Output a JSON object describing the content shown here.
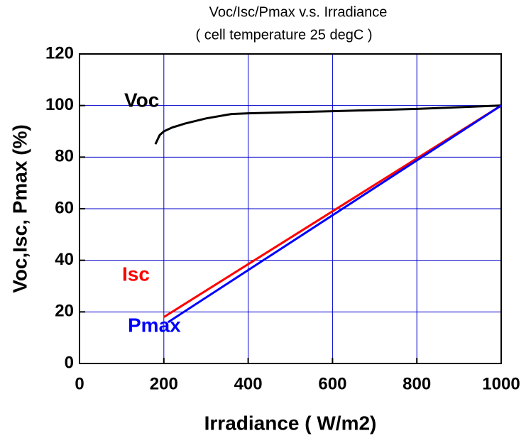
{
  "chart_data": {
    "type": "line",
    "title": "Voc/Isc/Pmax v.s. Irradiance",
    "subtitle": "( cell temperature 25 degC )",
    "x_label": "Irradiance ( W/m2)",
    "y_label": "Voc,Isc, Pmax (%)",
    "xlim": [
      0,
      1000
    ],
    "xticks": [
      0,
      200,
      400,
      600,
      800,
      1000
    ],
    "ylim": [
      0,
      120
    ],
    "yticks": [
      0,
      20,
      40,
      60,
      80,
      100,
      120
    ],
    "grid": true,
    "grid_color": "#0000cc",
    "series": [
      {
        "name": "Voc",
        "color": "#000000",
        "x": [
          180,
          190,
          200,
          220,
          250,
          300,
          360,
          400,
          600,
          800,
          1000
        ],
        "values": [
          85,
          88.5,
          90,
          91.5,
          93,
          95,
          96.7,
          97,
          97.8,
          98.7,
          100
        ]
      },
      {
        "name": "Isc",
        "color": "#ff0000",
        "x": [
          200,
          1000
        ],
        "values": [
          18,
          100
        ]
      },
      {
        "name": "Pmax",
        "color": "#0000ff",
        "x": [
          210,
          1000
        ],
        "values": [
          16,
          100
        ]
      }
    ]
  }
}
